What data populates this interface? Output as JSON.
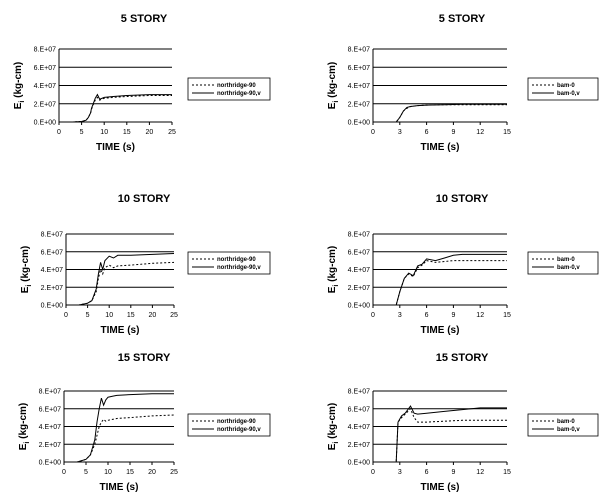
{
  "chart_data": [
    {
      "type": "line",
      "title": "5 STORY",
      "xlabel": "TIME (s)",
      "ylabel": "E_i (kg-cm)",
      "xlim": [
        0,
        25
      ],
      "ylim": [
        0,
        80000000
      ],
      "xticks": [
        0,
        5,
        10,
        15,
        20,
        25
      ],
      "xtick_labels": [
        "0",
        "5",
        "10",
        "15",
        "20",
        "25"
      ],
      "yticks": [
        0,
        20000000,
        40000000,
        60000000,
        80000000
      ],
      "ytick_labels": [
        "0.E+00",
        "2.E+07",
        "4.E+07",
        "6.E+07",
        "8.E+07"
      ],
      "grid": "horizontal",
      "legend": "right",
      "series": [
        {
          "name": "northridge-90",
          "style": "dotted",
          "x": [
            0,
            3,
            5,
            6,
            6.5,
            7,
            7.2,
            7.5,
            8,
            8.5,
            9,
            10,
            12,
            15,
            20,
            25
          ],
          "y": [
            0,
            0,
            500000,
            2000000,
            5000000,
            10000000,
            14000000,
            18000000,
            24000000,
            27000000,
            24000000,
            26000000,
            27000000,
            28000000,
            29000000,
            29000000
          ]
        },
        {
          "name": "northridge-90,v",
          "style": "solid",
          "x": [
            0,
            3,
            5,
            6,
            6.5,
            7,
            7.2,
            7.5,
            8,
            8.5,
            9,
            10,
            12,
            15,
            20,
            25
          ],
          "y": [
            0,
            0,
            500000,
            2000000,
            5000000,
            10000000,
            15000000,
            19000000,
            26000000,
            30000000,
            25000000,
            27000000,
            28000000,
            29000000,
            30000000,
            30000000
          ]
        }
      ]
    },
    {
      "type": "line",
      "title": "5 STORY",
      "xlabel": "TIME (s)",
      "ylabel": "E_i (kg-cm)",
      "xlim": [
        0,
        15
      ],
      "ylim": [
        0,
        80000000
      ],
      "xticks": [
        0,
        3,
        6,
        9,
        12,
        15
      ],
      "xtick_labels": [
        "0",
        "3",
        "6",
        "9",
        "12",
        "15"
      ],
      "yticks": [
        0,
        20000000,
        40000000,
        60000000,
        80000000
      ],
      "ytick_labels": [
        "0.E+00",
        "2.E+07",
        "4.E+07",
        "6.E+07",
        "8.E+07"
      ],
      "grid": "horizontal",
      "legend": "right",
      "series": [
        {
          "name": "bam-0",
          "style": "dotted",
          "x": [
            0,
            2.6,
            3,
            3.4,
            3.8,
            4.2,
            5,
            6,
            8,
            10,
            12,
            15
          ],
          "y": [
            0,
            0,
            5000000,
            12000000,
            15000000,
            17000000,
            18000000,
            18500000,
            19000000,
            19000000,
            19000000,
            19000000
          ]
        },
        {
          "name": "bam-0,v",
          "style": "solid",
          "x": [
            0,
            2.6,
            3,
            3.4,
            3.8,
            4.2,
            5,
            6,
            8,
            10,
            12,
            15
          ],
          "y": [
            0,
            0,
            5000000,
            12000000,
            16000000,
            17000000,
            18000000,
            18500000,
            19000000,
            19500000,
            19500000,
            19500000
          ]
        }
      ]
    },
    {
      "type": "line",
      "title": "10 STORY",
      "xlabel": "TIME (s)",
      "ylabel": "E_i (kg-cm)",
      "xlim": [
        0,
        25
      ],
      "ylim": [
        0,
        80000000
      ],
      "xticks": [
        0,
        5,
        10,
        15,
        20,
        25
      ],
      "xtick_labels": [
        "0",
        "5",
        "10",
        "15",
        "20",
        "25"
      ],
      "yticks": [
        0,
        20000000,
        40000000,
        60000000,
        80000000
      ],
      "ytick_labels": [
        "0.E+00",
        "2.E+07",
        "4.E+07",
        "6.E+07",
        "8.E+07"
      ],
      "grid": "horizontal",
      "legend": "right",
      "series": [
        {
          "name": "northridge-90",
          "style": "dotted",
          "x": [
            0,
            3,
            5,
            6,
            7,
            7.5,
            8,
            8.5,
            9,
            10,
            11,
            12,
            15,
            20,
            25
          ],
          "y": [
            0,
            0,
            2000000,
            5000000,
            15000000,
            30000000,
            40000000,
            35000000,
            42000000,
            45000000,
            42000000,
            44000000,
            45000000,
            47000000,
            48000000
          ]
        },
        {
          "name": "northridge-90,v",
          "style": "solid",
          "x": [
            0,
            3,
            5,
            6,
            7,
            7.5,
            8,
            8.5,
            9,
            10,
            11,
            12,
            15,
            20,
            25
          ],
          "y": [
            0,
            0,
            2000000,
            5000000,
            18000000,
            35000000,
            48000000,
            40000000,
            50000000,
            55000000,
            53000000,
            56000000,
            56000000,
            57000000,
            58000000
          ]
        }
      ]
    },
    {
      "type": "line",
      "title": "10 STORY",
      "xlabel": "TIME (s)",
      "ylabel": "E_i (kg-cm)",
      "xlim": [
        0,
        15
      ],
      "ylim": [
        0,
        80000000
      ],
      "xticks": [
        0,
        3,
        6,
        9,
        12,
        15
      ],
      "xtick_labels": [
        "0",
        "3",
        "6",
        "9",
        "12",
        "15"
      ],
      "yticks": [
        0,
        20000000,
        40000000,
        60000000,
        80000000
      ],
      "ytick_labels": [
        "0.E+00",
        "2.E+07",
        "4.E+07",
        "6.E+07",
        "8.E+07"
      ],
      "grid": "horizontal",
      "legend": "right",
      "series": [
        {
          "name": "bam-0",
          "style": "dotted",
          "x": [
            0,
            2.6,
            3,
            3.5,
            4,
            4.5,
            5,
            5.5,
            6,
            7,
            8,
            9,
            10,
            12,
            15
          ],
          "y": [
            0,
            0,
            15000000,
            30000000,
            35000000,
            32000000,
            42000000,
            45000000,
            50000000,
            48000000,
            49000000,
            50000000,
            50000000,
            50000000,
            50000000
          ]
        },
        {
          "name": "bam-0,v",
          "style": "solid",
          "x": [
            0,
            2.6,
            3,
            3.5,
            4,
            4.5,
            5,
            5.5,
            6,
            7,
            8,
            9,
            10,
            12,
            15
          ],
          "y": [
            0,
            0,
            15000000,
            30000000,
            36000000,
            33000000,
            44000000,
            46000000,
            52000000,
            50000000,
            53000000,
            56000000,
            57000000,
            57000000,
            57000000
          ]
        }
      ]
    },
    {
      "type": "line",
      "title": "15 STORY",
      "xlabel": "TIME (s)",
      "ylabel": "E_i (kg-cm)",
      "xlim": [
        0,
        25
      ],
      "ylim": [
        0,
        80000000
      ],
      "xticks": [
        0,
        5,
        10,
        15,
        20,
        25
      ],
      "xtick_labels": [
        "0",
        "5",
        "10",
        "15",
        "20",
        "25"
      ],
      "yticks": [
        0,
        20000000,
        40000000,
        60000000,
        80000000
      ],
      "ytick_labels": [
        "0.E+00",
        "2.E+07",
        "4.E+07",
        "6.E+07",
        "8.E+07"
      ],
      "grid": "horizontal",
      "legend": "right",
      "series": [
        {
          "name": "northridge-90",
          "style": "dotted",
          "x": [
            0,
            3,
            5,
            6,
            7,
            7.5,
            8,
            8.5,
            9,
            9.5,
            10,
            11,
            12,
            15,
            20,
            25
          ],
          "y": [
            0,
            0,
            3000000,
            8000000,
            20000000,
            30000000,
            40000000,
            45000000,
            48000000,
            46000000,
            47000000,
            48000000,
            49000000,
            50000000,
            52000000,
            53000000
          ]
        },
        {
          "name": "northridge-90,v",
          "style": "solid",
          "x": [
            0,
            3,
            5,
            6,
            7,
            7.5,
            8,
            8.5,
            9,
            9.5,
            10,
            11,
            12,
            15,
            20,
            25
          ],
          "y": [
            0,
            0,
            3000000,
            8000000,
            25000000,
            45000000,
            60000000,
            72000000,
            64000000,
            70000000,
            73000000,
            74000000,
            75000000,
            76000000,
            77000000,
            77000000
          ]
        }
      ]
    },
    {
      "type": "line",
      "title": "15 STORY",
      "xlabel": "TIME (s)",
      "ylabel": "E_i (kg-cm)",
      "xlim": [
        0,
        15
      ],
      "ylim": [
        0,
        80000000
      ],
      "xticks": [
        0,
        3,
        6,
        9,
        12,
        15
      ],
      "xtick_labels": [
        "0",
        "3",
        "6",
        "9",
        "12",
        "15"
      ],
      "yticks": [
        0,
        20000000,
        40000000,
        60000000,
        80000000
      ],
      "ytick_labels": [
        "0.E+00",
        "2.E+07",
        "4.E+07",
        "6.E+07",
        "8.E+07"
      ],
      "grid": "horizontal",
      "legend": "right",
      "series": [
        {
          "name": "bam-0",
          "style": "dotted",
          "x": [
            0,
            2.6,
            2.8,
            3.2,
            3.6,
            4.2,
            4.6,
            5,
            6,
            8,
            10,
            12,
            15
          ],
          "y": [
            0,
            0,
            45000000,
            50000000,
            54000000,
            60000000,
            50000000,
            45000000,
            45000000,
            46000000,
            47000000,
            47000000,
            47000000
          ]
        },
        {
          "name": "bam-0,v",
          "style": "solid",
          "x": [
            0,
            2.6,
            2.8,
            3.2,
            3.6,
            4.2,
            4.6,
            5,
            6,
            8,
            10,
            12,
            15
          ],
          "y": [
            0,
            0,
            45000000,
            52000000,
            55000000,
            63000000,
            55000000,
            54000000,
            55000000,
            57000000,
            59000000,
            61000000,
            61000000
          ]
        }
      ]
    }
  ]
}
